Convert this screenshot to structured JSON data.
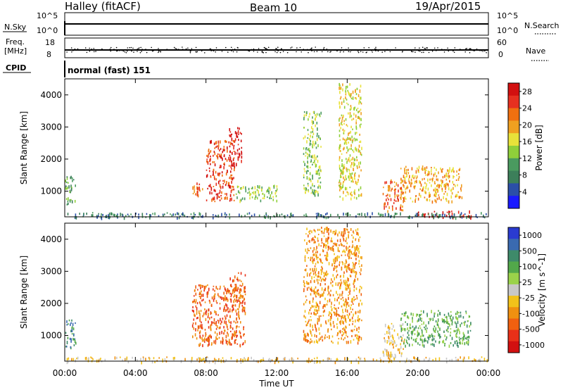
{
  "header": {
    "station": "Halley (fitACF)",
    "beam": "Beam 10",
    "date": "19/Apr/2015"
  },
  "panels": {
    "nsky": {
      "left_label": "N.Sky",
      "right_label": "N.Search",
      "tick_high": "10^5",
      "tick_low": "10^0",
      "right_tick_high": "10^5",
      "right_tick_low": "10^0"
    },
    "freq": {
      "label_line1": "Freq.",
      "label_line2": "[MHz]",
      "right_label": "Nave",
      "tick_high": "18",
      "tick_low": "8",
      "right_tick_high": "60",
      "right_tick_low": "0"
    },
    "cpid": {
      "label": "CPID",
      "value": "normal (fast) 151"
    }
  },
  "colors": {
    "power": [
      "#1a1aff",
      "#2b4fa8",
      "#3c7f5a",
      "#4a9a5f",
      "#8fcf3a",
      "#e8e23a",
      "#f0a020",
      "#f07010",
      "#e63020",
      "#d21010"
    ],
    "velocity": [
      "#2a3bd0",
      "#3a6ab0",
      "#3e8a6a",
      "#52a84a",
      "#9ad24a",
      "#c8c8c8",
      "#f2c21a",
      "#f09010",
      "#f06010",
      "#e83018",
      "#d21010"
    ]
  },
  "chart_data": [
    {
      "type": "heatmap",
      "name": "Power",
      "ylabel": "Slant Range [km]",
      "x_range_hours": [
        0,
        24
      ],
      "ylim_km": [
        200,
        4500
      ],
      "y_ticks": [
        1000,
        2000,
        3000,
        4000
      ],
      "colorbar_label": "Power [dB]",
      "colorbar_ticks": [
        "4",
        "8",
        "12",
        "16",
        "20",
        "24",
        "28"
      ],
      "colorbar_range": [
        0,
        30
      ],
      "regions": [
        {
          "t": [
            0.0,
            0.6
          ],
          "r": [
            600,
            1500
          ],
          "level": 3
        },
        {
          "t": [
            7.2,
            7.8
          ],
          "r": [
            900,
            1300
          ],
          "level": 7
        },
        {
          "t": [
            8.0,
            9.6
          ],
          "r": [
            700,
            2600
          ],
          "level": 8
        },
        {
          "t": [
            9.3,
            10.0
          ],
          "r": [
            1800,
            3000
          ],
          "level": 9
        },
        {
          "t": [
            9.6,
            12.0
          ],
          "r": [
            700,
            1200
          ],
          "level": 4
        },
        {
          "t": [
            13.5,
            14.5
          ],
          "r": [
            900,
            3500
          ],
          "level": 4
        },
        {
          "t": [
            15.5,
            16.8
          ],
          "r": [
            800,
            4400
          ],
          "level": 5
        },
        {
          "t": [
            18.0,
            19.2
          ],
          "r": [
            400,
            1400
          ],
          "level": 7
        },
        {
          "t": [
            19.0,
            22.5
          ],
          "r": [
            700,
            1800
          ],
          "level": 6
        },
        {
          "t": [
            20.0,
            23.0
          ],
          "r": [
            200,
            400
          ],
          "level": 9
        },
        {
          "t": [
            0.0,
            23.9
          ],
          "r": [
            200,
            350
          ],
          "level": 2
        }
      ]
    },
    {
      "type": "heatmap",
      "name": "Velocity",
      "ylabel": "Slant Range [km]",
      "xlabel": "Time UT",
      "x_ticks": [
        "00:00",
        "04:00",
        "08:00",
        "12:00",
        "16:00",
        "20:00",
        "00:00"
      ],
      "x_range_hours": [
        0,
        24
      ],
      "ylim_km": [
        200,
        4500
      ],
      "y_ticks": [
        1000,
        2000,
        3000,
        4000
      ],
      "colorbar_label": "Velocity [m s^-1]",
      "colorbar_ticks": [
        "1000",
        "500",
        "100",
        "25",
        "-25",
        "-100",
        "-500",
        "-1000"
      ],
      "regions": [
        {
          "t": [
            0.0,
            0.6
          ],
          "r": [
            600,
            1500
          ],
          "level": 2
        },
        {
          "t": [
            7.2,
            10.2
          ],
          "r": [
            700,
            2600
          ],
          "level": 8
        },
        {
          "t": [
            9.3,
            10.2
          ],
          "r": [
            1800,
            3000
          ],
          "level": 8
        },
        {
          "t": [
            13.5,
            16.8
          ],
          "r": [
            800,
            4400
          ],
          "level": 7
        },
        {
          "t": [
            18.0,
            19.2
          ],
          "r": [
            400,
            1400
          ],
          "level": 6
        },
        {
          "t": [
            19.0,
            23.0
          ],
          "r": [
            700,
            1800
          ],
          "level": 3
        },
        {
          "t": [
            0.0,
            23.9
          ],
          "r": [
            200,
            350
          ],
          "level": 6
        }
      ]
    }
  ]
}
